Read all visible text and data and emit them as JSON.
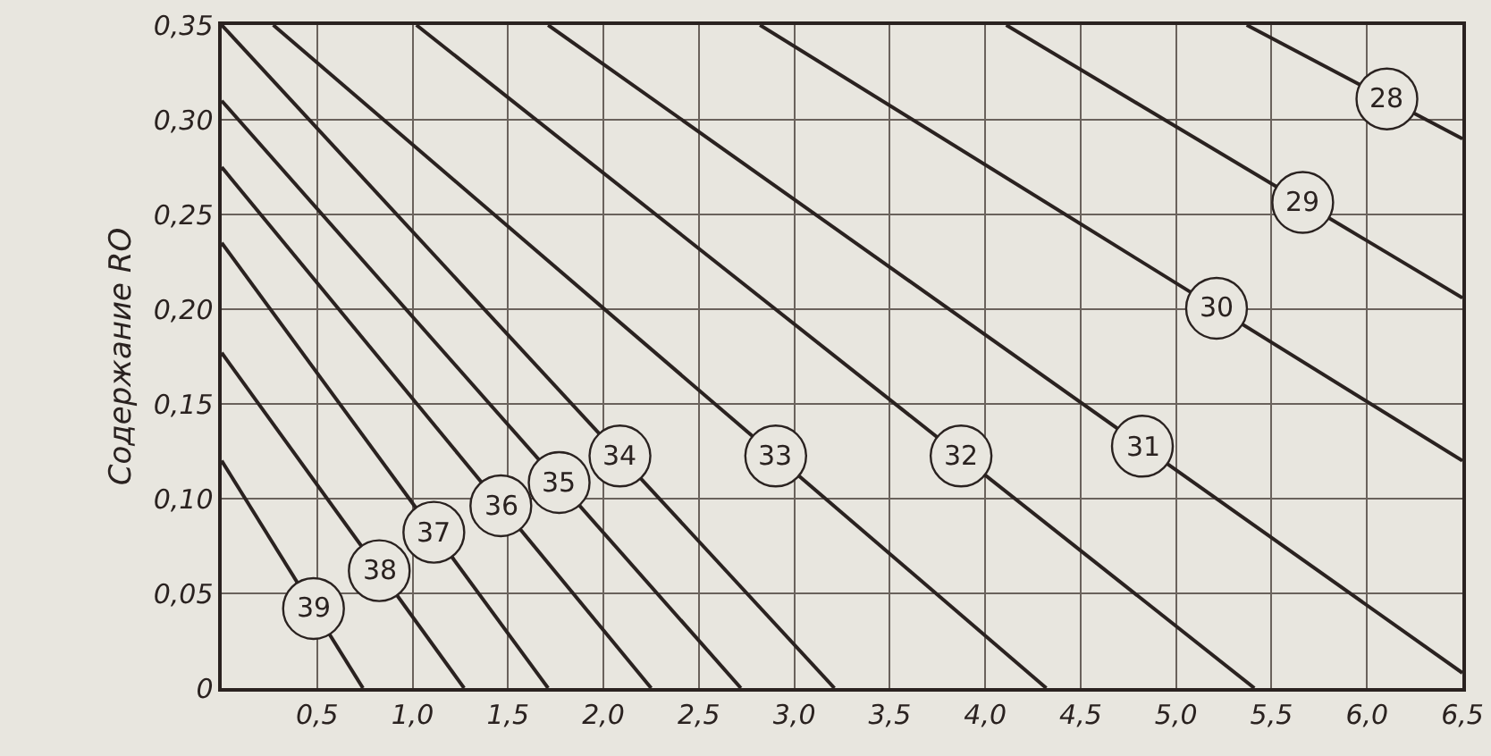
{
  "chart_data": {
    "type": "line",
    "ylabel": "Содержание RO",
    "xlim": [
      0,
      6.5
    ],
    "ylim": [
      0,
      0.35
    ],
    "xticks": [
      {
        "value": 0.5,
        "label": "0,5"
      },
      {
        "value": 1,
        "label": "1,0"
      },
      {
        "value": 1.5,
        "label": "1,5"
      },
      {
        "value": 2,
        "label": "2,0"
      },
      {
        "value": 2.5,
        "label": "2,5"
      },
      {
        "value": 3,
        "label": "3,0"
      },
      {
        "value": 3.5,
        "label": "3,5"
      },
      {
        "value": 4,
        "label": "4,0"
      },
      {
        "value": 4.5,
        "label": "4,5"
      },
      {
        "value": 5,
        "label": "5,0"
      },
      {
        "value": 5.5,
        "label": "5,5"
      },
      {
        "value": 6,
        "label": "6,0"
      },
      {
        "value": 6.5,
        "label": "6,5"
      }
    ],
    "yticks": [
      0,
      {
        "value": 0.05,
        "label": "0,05"
      },
      {
        "value": 0.1,
        "label": "0,10"
      },
      {
        "value": 0.15,
        "label": "0,15"
      },
      {
        "value": 0.2,
        "label": "0,20"
      },
      {
        "value": 0.25,
        "label": "0,25"
      },
      {
        "value": 0.3,
        "label": "0,30"
      },
      {
        "value": 0.35,
        "label": "0,35"
      }
    ],
    "grid": true,
    "legend": false,
    "marker": "none",
    "line_style": "solid",
    "series": [
      {
        "name": "28",
        "color": "#2a2220",
        "x": [
          5.37,
          6.5
        ],
        "values": [
          0.35,
          0.29
        ]
      },
      {
        "name": "29",
        "color": "#2a2220",
        "x": [
          4.11,
          6.5
        ],
        "values": [
          0.35,
          0.206
        ]
      },
      {
        "name": "30",
        "color": "#2a2220",
        "x": [
          2.82,
          6.5
        ],
        "values": [
          0.35,
          0.12
        ]
      },
      {
        "name": "31",
        "color": "#2a2220",
        "x": [
          1.71,
          6.5
        ],
        "values": [
          0.35,
          0.008
        ]
      },
      {
        "name": "32",
        "color": "#2a2220",
        "x": [
          1.02,
          5.41
        ],
        "values": [
          0.35,
          0
        ]
      },
      {
        "name": "33",
        "color": "#2a2220",
        "x": [
          0.27,
          4.32
        ],
        "values": [
          0.35,
          0
        ]
      },
      {
        "name": "34",
        "color": "#2a2220",
        "x": [
          0,
          3.21
        ],
        "values": [
          0.35,
          0
        ]
      },
      {
        "name": "35",
        "color": "#2a2220",
        "x": [
          0,
          2.72
        ],
        "values": [
          0.31,
          0
        ]
      },
      {
        "name": "36",
        "color": "#2a2220",
        "x": [
          0,
          2.25
        ],
        "values": [
          0.275,
          0
        ]
      },
      {
        "name": "37",
        "color": "#2a2220",
        "x": [
          0,
          1.71
        ],
        "values": [
          0.235,
          0
        ]
      },
      {
        "name": "38",
        "color": "#2a2220",
        "x": [
          0,
          1.27
        ],
        "values": [
          0.177,
          0
        ]
      },
      {
        "name": "39",
        "color": "#2a2220",
        "x": [
          0,
          0.74
        ],
        "values": [
          0.12,
          0
        ]
      }
    ]
  }
}
